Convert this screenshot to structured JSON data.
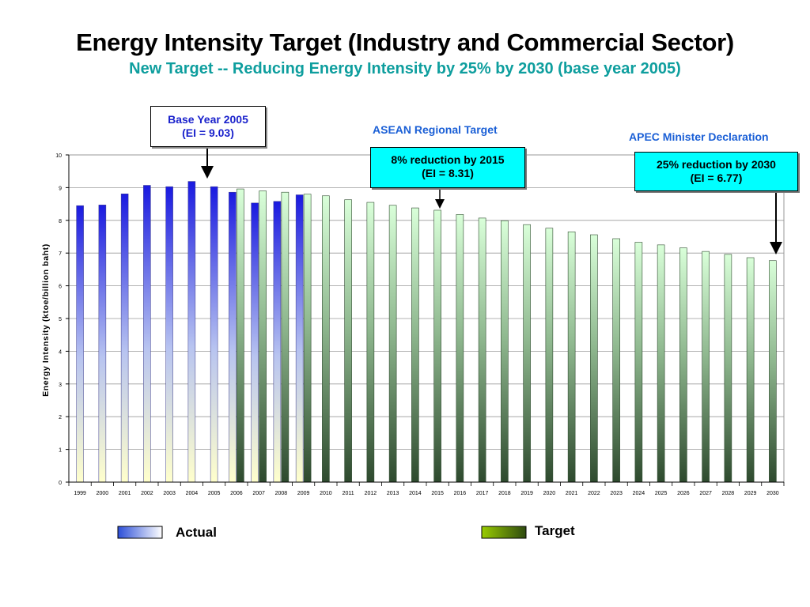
{
  "slide": {
    "title": "Energy Intensity Target (Industry and Commercial Sector)",
    "subtitle": "New Target -- Reducing Energy Intensity by 25% by 2030 (base year 2005)"
  },
  "callouts": {
    "base_year": {
      "line1": "Base Year 2005",
      "line2": "(EI = 9.03)"
    },
    "asean": {
      "heading": "ASEAN Regional Target",
      "line1": "8% reduction by 2015",
      "line2": "(EI = 8.31)"
    },
    "apec": {
      "heading": "APEC Minister Declaration",
      "line1": "25% reduction by 2030",
      "line2": "(EI  =  6.77)"
    }
  },
  "legend": {
    "actual": "Actual",
    "target": "Target"
  },
  "colors": {
    "subtitle": "#0e9e9e",
    "actual_top": "#1a1ae0",
    "actual_bottom": "#ffffcc",
    "target_top": "#d9ffd9",
    "target_bottom": "#2e4a2e",
    "callout_fill": "#00ffff"
  },
  "chart_data": {
    "type": "bar",
    "ylabel": "Energy Intensity (ktoe/billion baht)",
    "xlabel": "",
    "ylim": [
      0,
      10
    ],
    "yticks": [
      "0",
      "1",
      "2",
      "3",
      "4",
      "5",
      "6",
      "7",
      "8",
      "9",
      "10"
    ],
    "grid": true,
    "categories": [
      "1999",
      "2000",
      "2001",
      "2002",
      "2003",
      "2004",
      "2005",
      "2006",
      "2007",
      "2008",
      "2009",
      "2010",
      "2011",
      "2012",
      "2013",
      "2014",
      "2015",
      "2016",
      "2017",
      "2018",
      "2019",
      "2020",
      "2021",
      "2022",
      "2023",
      "2024",
      "2025",
      "2026",
      "2027",
      "2028",
      "2029",
      "2030"
    ],
    "series": [
      {
        "name": "Actual",
        "values": [
          8.45,
          8.47,
          8.81,
          9.07,
          9.03,
          9.19,
          9.03,
          8.86,
          8.53,
          8.58,
          8.78,
          null,
          null,
          null,
          null,
          null,
          null,
          null,
          null,
          null,
          null,
          null,
          null,
          null,
          null,
          null,
          null,
          null,
          null,
          null,
          null,
          null
        ]
      },
      {
        "name": "Target",
        "values": [
          null,
          null,
          null,
          null,
          null,
          null,
          null,
          8.96,
          8.9,
          8.86,
          8.8,
          8.75,
          8.63,
          8.55,
          8.46,
          8.38,
          8.31,
          8.18,
          8.07,
          7.99,
          7.87,
          7.76,
          7.65,
          7.56,
          7.44,
          7.33,
          7.25,
          7.16,
          7.05,
          6.96,
          6.86,
          6.77
        ]
      }
    ]
  }
}
